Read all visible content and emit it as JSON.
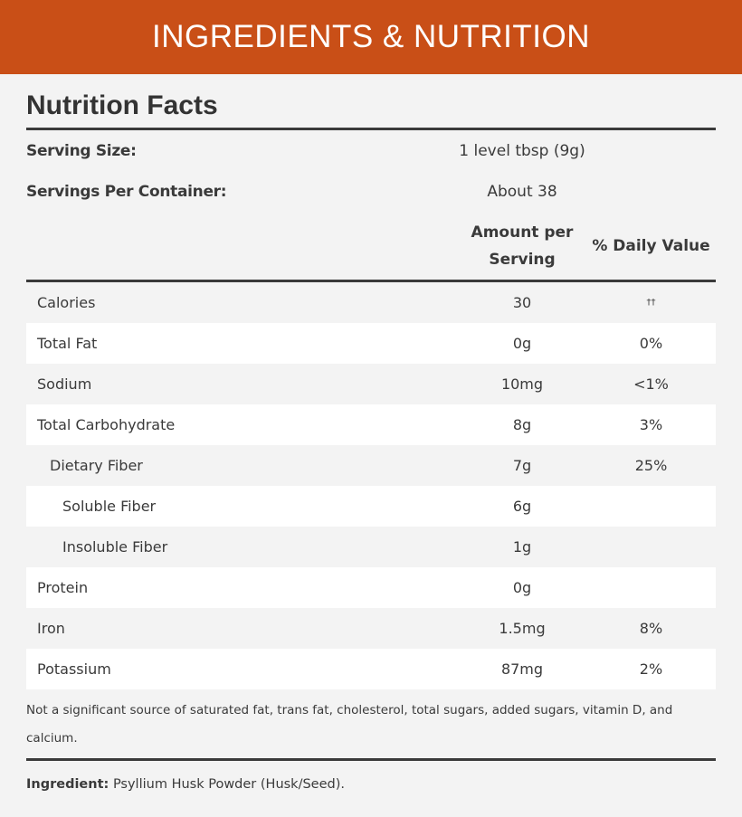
{
  "banner": {
    "title": "INGREDIENTS & NUTRITION",
    "color": "#c94f17"
  },
  "facts": {
    "title": "Nutrition Facts",
    "serving_size_label": "Serving Size:",
    "serving_size": "1 level tbsp (9g)",
    "servings_label": "Servings Per Container:",
    "servings": "About 38",
    "col_amount": "Amount per Serving",
    "col_dv": "% Daily Value",
    "rows": [
      {
        "name": "Calories",
        "amount": "30",
        "dv": "††"
      },
      {
        "name": "Total Fat",
        "amount": "0g",
        "dv": "0%"
      },
      {
        "name": "Sodium",
        "amount": "10mg",
        "dv": "<1%"
      },
      {
        "name": "Total Carbohydrate",
        "amount": "8g",
        "dv": "3%"
      },
      {
        "name": "Dietary Fiber",
        "amount": "7g",
        "dv": "25%"
      },
      {
        "name": "Soluble Fiber",
        "amount": "6g",
        "dv": ""
      },
      {
        "name": "Insoluble Fiber",
        "amount": "1g",
        "dv": ""
      },
      {
        "name": "Protein",
        "amount": "0g",
        "dv": ""
      },
      {
        "name": "Iron",
        "amount": "1.5mg",
        "dv": "8%"
      },
      {
        "name": "Potassium",
        "amount": "87mg",
        "dv": "2%"
      }
    ],
    "note": "Not a significant source of saturated fat, trans fat, cholesterol, total sugars, added sugars, vitamin D, and calcium.",
    "ingredient_label": "Ingredient:",
    "ingredient": "Psyllium Husk Powder (Husk/Seed)."
  }
}
